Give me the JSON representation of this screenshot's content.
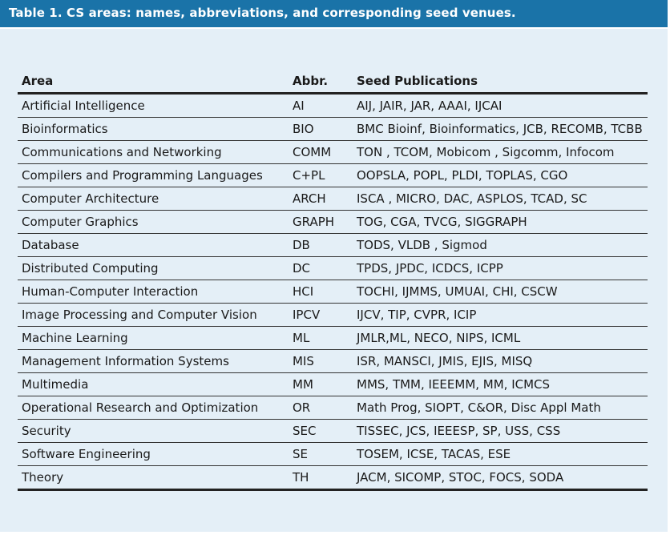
{
  "title": "Table 1. CS areas: names, abbreviations, and corresponding seed venues.",
  "headers": [
    "Area",
    "Abbr.",
    "Seed Publications"
  ],
  "rows": [
    [
      "Artificial Intelligence",
      "AI",
      "AIJ, JAIR, JAR, AAAI, IJCAI"
    ],
    [
      "Bioinformatics",
      "BIO",
      "BMC Bioinf, Bioinformatics, JCB, RECOMB, TCBB"
    ],
    [
      "Communications and Networking",
      "COMM",
      "TON , TCOM, Mobicom , Sigcomm, Infocom"
    ],
    [
      "Compilers and Programming Languages",
      "C+PL",
      "OOPSLA, POPL, PLDI, TOPLAS, CGO"
    ],
    [
      "Computer Architecture",
      "ARCH",
      "ISCA , MICRO, DAC, ASPLOS, TCAD, SC"
    ],
    [
      "Computer Graphics",
      "GRAPH",
      "TOG, CGA, TVCG, SIGGRAPH"
    ],
    [
      "Database",
      "DB",
      "TODS, VLDB , Sigmod"
    ],
    [
      "Distributed Computing",
      "DC",
      "TPDS, JPDC, ICDCS, ICPP"
    ],
    [
      "Human-Computer Interaction",
      "HCI",
      "TOCHI, IJMMS, UMUAI, CHI, CSCW"
    ],
    [
      "Image Processing and Computer Vision",
      "IPCV",
      "IJCV, TIP, CVPR, ICIP"
    ],
    [
      "Machine Learning",
      "ML",
      "JMLR,ML, NECO, NIPS, ICML"
    ],
    [
      "Management Information Systems",
      "MIS",
      "ISR, MANSCI, JMIS, EJIS, MISQ"
    ],
    [
      "Multimedia",
      "MM",
      "MMS, TMM, IEEEMM, MM, ICMCS"
    ],
    [
      "Operational Research and Optimization",
      "OR",
      "Math Prog, SIOPT, C&OR, Disc Appl Math"
    ],
    [
      "Security",
      "SEC",
      "TISSEC, JCS, IEEESP, SP, USS, CSS"
    ],
    [
      "Software Engineering",
      "SE",
      "TOSEM, ICSE, TACAS, ESE"
    ],
    [
      "Theory",
      "TH",
      "JACM, SICOMP, STOC, FOCS, SODA"
    ]
  ],
  "colors": {
    "banner": "#1a73a8",
    "panel": "#e4eff7",
    "title_text": "#ffffff"
  }
}
